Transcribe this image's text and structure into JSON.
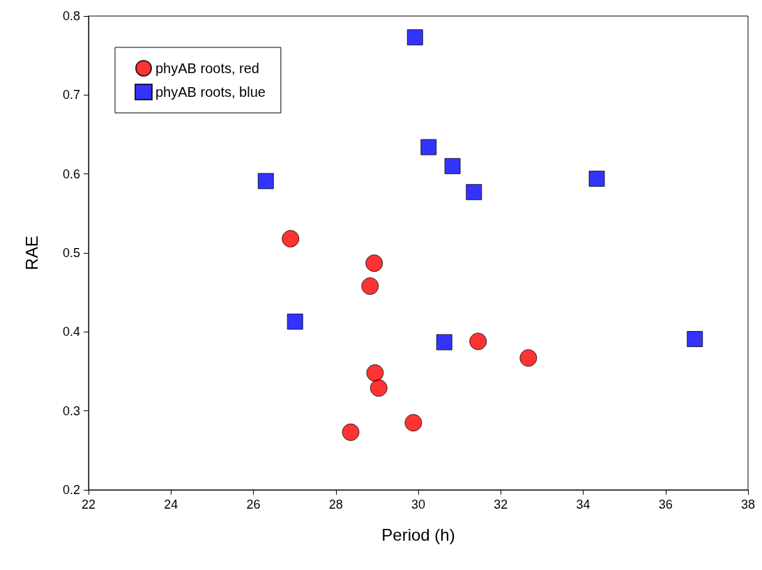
{
  "chart_data": {
    "type": "scatter",
    "xlabel": "Period (h)",
    "ylabel": "RAE",
    "xlim": [
      22,
      38
    ],
    "xticks": [
      22,
      24,
      26,
      28,
      30,
      32,
      34,
      36,
      38
    ],
    "ylim": [
      0.2,
      0.8
    ],
    "yticks": [
      0.2,
      0.3,
      0.4,
      0.5,
      0.6,
      0.7,
      0.8
    ],
    "grid": false,
    "legend": "top left",
    "series": [
      {
        "name": "phyAB roots, red",
        "color": "#ff0000",
        "marker": "circle",
        "x": [
          26.9,
          28.93,
          28.83,
          28.95,
          29.04,
          28.36,
          29.88,
          31.45,
          32.67
        ],
        "values": [
          0.518,
          0.487,
          0.458,
          0.348,
          0.329,
          0.273,
          0.285,
          0.388,
          0.367
        ]
      },
      {
        "name": "phyAB roots, blue",
        "color": "#0000ff",
        "marker": "square",
        "x": [
          29.92,
          30.25,
          30.83,
          31.35,
          34.33,
          26.3,
          27.01,
          30.63,
          36.71
        ],
        "values": [
          0.773,
          0.634,
          0.61,
          0.577,
          0.594,
          0.591,
          0.413,
          0.387,
          0.391
        ]
      }
    ]
  }
}
